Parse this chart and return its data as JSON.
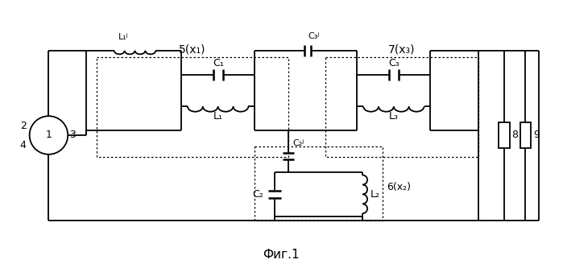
{
  "fig_width": 6.99,
  "fig_height": 3.33,
  "dpi": 100,
  "bg": "#ffffff",
  "lc": "#000000",
  "title": "Фиг.1",
  "box5_label": "5(x₁)",
  "box6_label": "6(x₂)",
  "box7_label": "7(x₃)",
  "src_label": "1",
  "port2": "2",
  "port3": "3",
  "port4": "4",
  "res8": "8",
  "res9": "9",
  "lbl_L1s": "L₁ʲ",
  "lbl_C1": "C₁",
  "lbl_L1": "L₁",
  "lbl_C3s": "C₃ʲ",
  "lbl_C3": "C₃",
  "lbl_L3": "L₃",
  "lbl_C2s": "C₂ʲ",
  "lbl_C2": "C₂",
  "lbl_L2": "L₂"
}
